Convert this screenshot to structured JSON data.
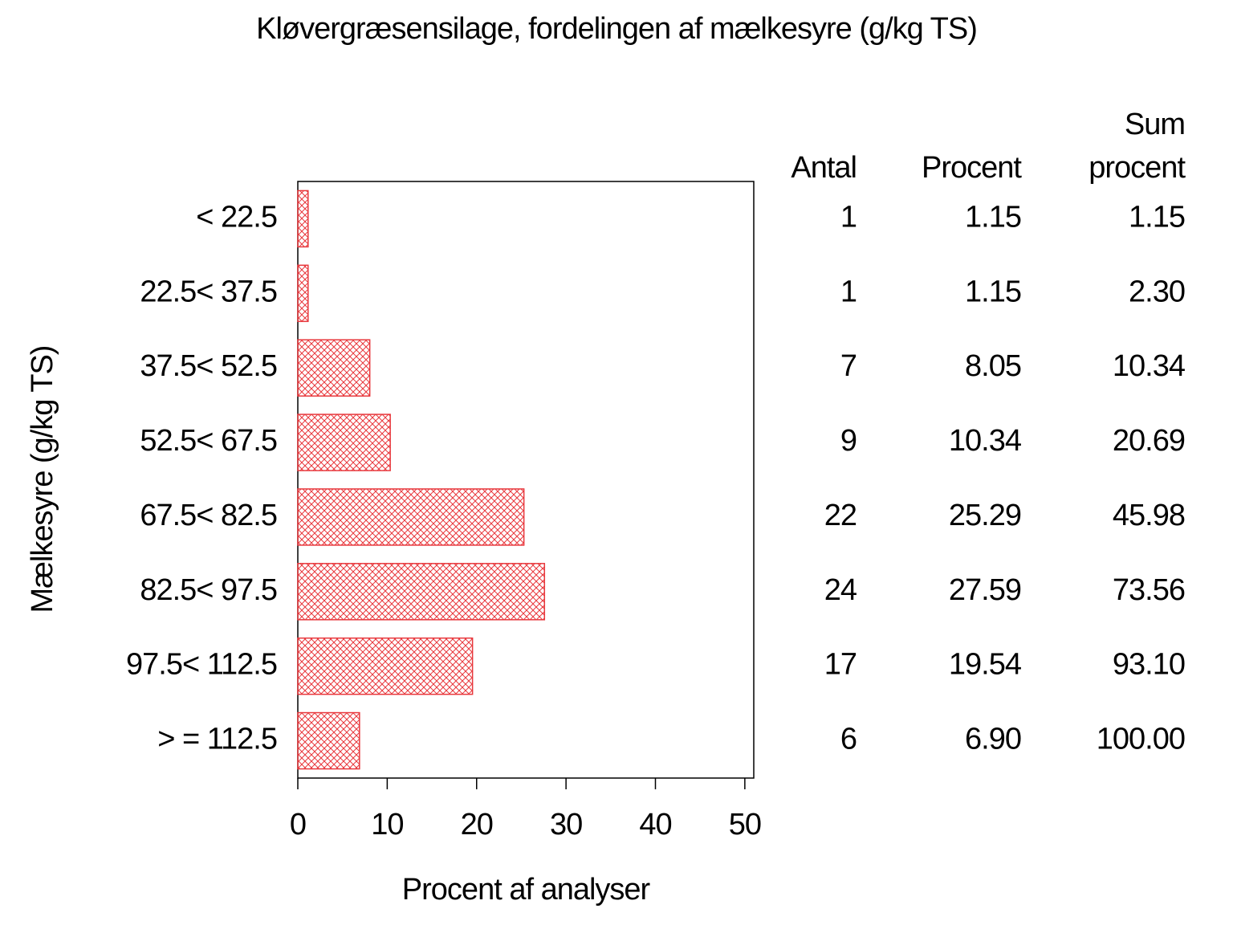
{
  "chart_data": {
    "type": "bar",
    "orientation": "horizontal",
    "title": "Kløvergræsensilage, fordelingen af mælkesyre (g/kg TS)",
    "ylabel": "Mælkesyre (g/kg TS)",
    "xlabel": "Procent af analyser",
    "categories": [
      "< 22.5",
      "22.5< 37.5",
      "37.5< 52.5",
      "52.5< 67.5",
      "67.5< 82.5",
      "82.5< 97.5",
      "97.5< 112.5",
      "> = 112.5"
    ],
    "values": [
      1.15,
      1.15,
      8.05,
      10.34,
      25.29,
      27.59,
      19.54,
      6.9
    ],
    "value_labels": [
      "1.15",
      "1.15",
      "8.05",
      "10.34",
      "25.29",
      "27.59",
      "19.54",
      "6.90"
    ],
    "color": "#e8383d",
    "xlim": [
      0,
      51
    ],
    "xticks": [
      0,
      10,
      20,
      30,
      40,
      50
    ],
    "count_header": "Antal",
    "counts": [
      1,
      1,
      7,
      9,
      22,
      24,
      17,
      6
    ],
    "percent_header": "Procent",
    "cumulative_header": [
      "Sum",
      "procent"
    ],
    "cumulative_labels": [
      "1.15",
      "2.30",
      "10.34",
      "20.69",
      "45.98",
      "73.56",
      "93.10",
      "100.00"
    ]
  }
}
